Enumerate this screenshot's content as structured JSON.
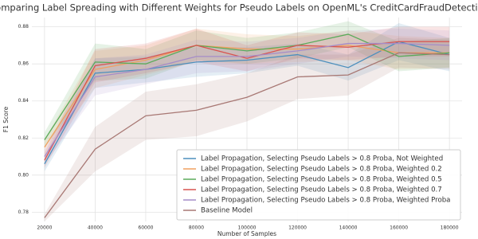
{
  "chart_data": {
    "type": "line",
    "title": "Comparing Label Spreading with Different Weights for Pseudo Labels on OpenML's CreditCardFraudDetection",
    "x_label": "Number of Samples",
    "y_label": "F1 Score",
    "x": [
      20000,
      40000,
      60000,
      80000,
      100000,
      120000,
      140000,
      160000,
      180000
    ],
    "xlim": [
      15000,
      185000
    ],
    "xticks": [
      20000,
      40000,
      60000,
      80000,
      100000,
      120000,
      140000,
      160000,
      180000
    ],
    "ylim": [
      0.775,
      0.885
    ],
    "yticks": [
      0.78,
      {
        "value": 0.8,
        "label": "0.80"
      },
      0.82,
      0.84,
      0.86,
      0.88
    ],
    "grid": true,
    "legend": "lower right",
    "series": [
      {
        "name": "Label Propagation, Selecting Pseudo Labels > 0.8 Proba, Not Weighted",
        "color": "#4c8fbd",
        "values": [
          0.806,
          0.855,
          0.857,
          0.861,
          0.862,
          0.865,
          0.858,
          0.872,
          0.865
        ],
        "ci": [
          0.004,
          0.008,
          0.007,
          0.008,
          0.007,
          0.006,
          0.007,
          0.01,
          0.009
        ]
      },
      {
        "name": "Label Propagation, Selecting Pseudo Labels > 0.8 Proba, Weighted 0.2",
        "color": "#f0a060",
        "values": [
          0.815,
          0.857,
          0.862,
          0.87,
          0.868,
          0.868,
          0.87,
          0.866,
          0.866
        ],
        "ci": [
          0.004,
          0.01,
          0.008,
          0.009,
          0.008,
          0.007,
          0.008,
          0.009,
          0.008
        ]
      },
      {
        "name": "Label Propagation, Selecting Pseudo Labels > 0.8 Proba, Weighted 0.5",
        "color": "#5aab5a",
        "values": [
          0.819,
          0.861,
          0.86,
          0.87,
          0.867,
          0.87,
          0.876,
          0.864,
          0.866
        ],
        "ci": [
          0.004,
          0.01,
          0.008,
          0.008,
          0.007,
          0.007,
          0.007,
          0.008,
          0.008
        ]
      },
      {
        "name": "Label Propagation, Selecting Pseudo Labels > 0.8 Proba, Weighted 0.7",
        "color": "#d9534f",
        "values": [
          0.808,
          0.859,
          0.863,
          0.87,
          0.863,
          0.87,
          0.869,
          0.872,
          0.872
        ],
        "ci": [
          0.004,
          0.009,
          0.008,
          0.009,
          0.007,
          0.007,
          0.007,
          0.008,
          0.008
        ]
      },
      {
        "name": "Label Propagation, Selecting Pseudo Labels > 0.8 Proba, Weighted Proba",
        "color": "#a58cc8",
        "values": [
          0.81,
          0.853,
          0.857,
          0.864,
          0.864,
          0.867,
          0.871,
          0.871,
          0.87
        ],
        "ci": [
          0.004,
          0.01,
          0.008,
          0.009,
          0.008,
          0.007,
          0.007,
          0.008,
          0.008
        ]
      },
      {
        "name": "Baseline Model",
        "color": "#a87874",
        "values": [
          0.777,
          0.814,
          0.832,
          0.835,
          0.842,
          0.853,
          0.854,
          0.866,
          0.865
        ],
        "ci": [
          0.002,
          0.012,
          0.013,
          0.014,
          0.013,
          0.012,
          0.011,
          0.008,
          0.008
        ]
      }
    ]
  }
}
